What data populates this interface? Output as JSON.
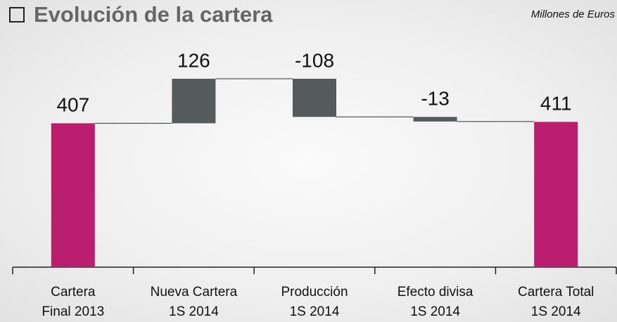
{
  "chart_data": {
    "type": "waterfall",
    "title": "Evolución de la cartera",
    "subtitle": "Millones de Euros",
    "categories": [
      [
        "Cartera",
        "Final 2013"
      ],
      [
        "Nueva Cartera",
        "1S 2014"
      ],
      [
        "Producción",
        "1S 2014"
      ],
      [
        "Efecto divisa",
        "1S 2014"
      ],
      [
        "Cartera Total",
        "1S 2014"
      ]
    ],
    "values": [
      407,
      126,
      -108,
      -13,
      411
    ],
    "measure": [
      "absolute",
      "relative",
      "relative",
      "relative",
      "total"
    ],
    "total_color": "#bb1e6e",
    "change_color": "#555a5a"
  }
}
